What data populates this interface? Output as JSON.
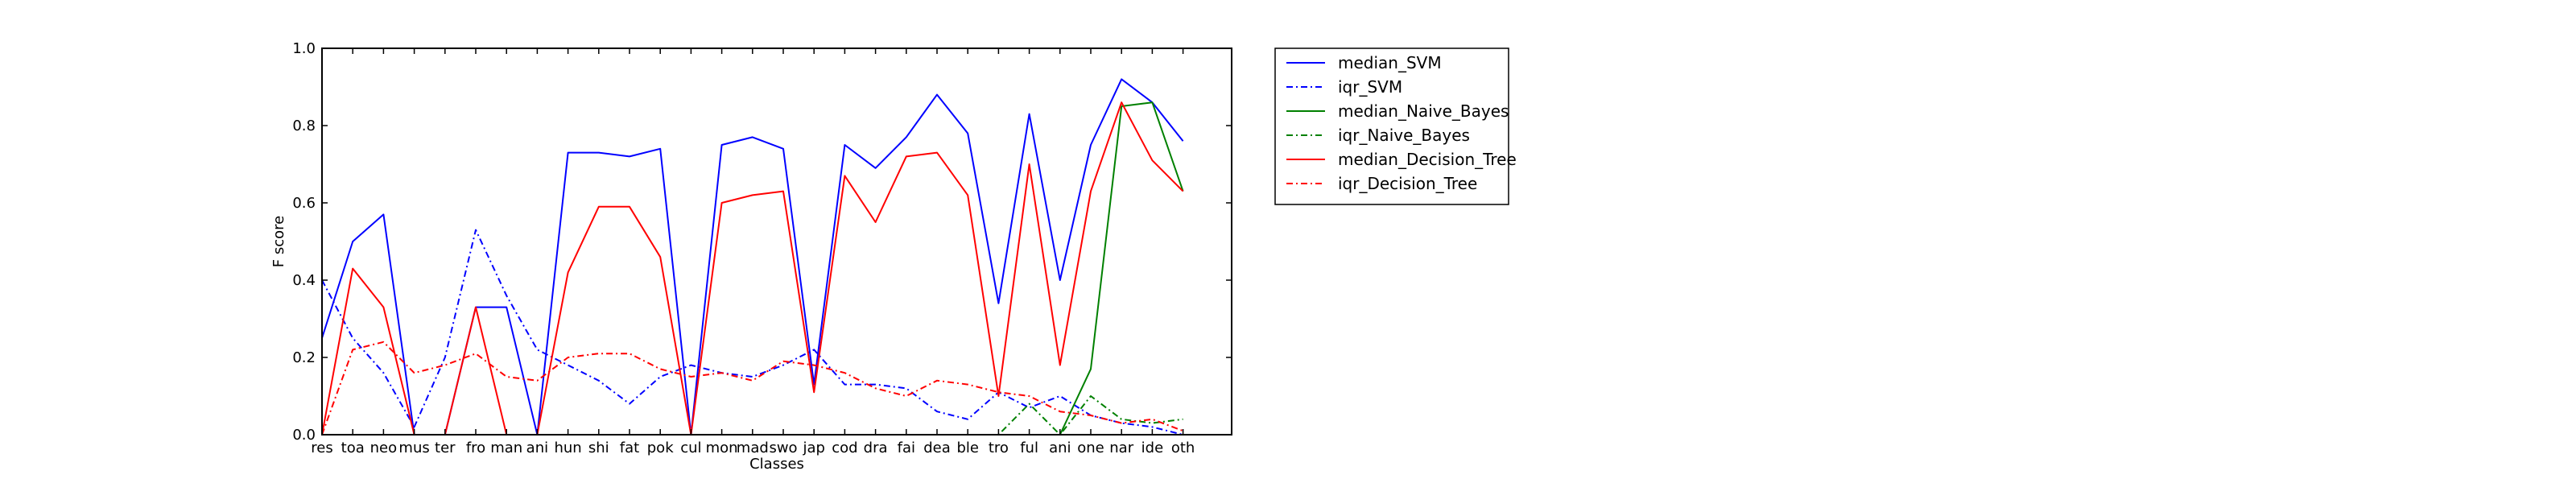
{
  "chart_data": {
    "type": "line",
    "xlabel": "Classes",
    "ylabel": "F score",
    "ylim": [
      0,
      1.0
    ],
    "yticks": [
      "0.0",
      "0.2",
      "0.4",
      "0.6",
      "0.8",
      "1.0"
    ],
    "grid": false,
    "legend_position": "outside-right",
    "categories": [
      "res",
      "toa",
      "neo",
      "mus",
      "ter",
      "fro",
      "man",
      "ani",
      "hun",
      "shi",
      "fat",
      "pok",
      "cul",
      "mon",
      "mad",
      "swo",
      "jap",
      "cod",
      "dra",
      "fai",
      "dea",
      "ble",
      "tro",
      "ful",
      "ani",
      "one",
      "nar",
      "ide",
      "oth"
    ],
    "series": [
      {
        "name": "median_SVM",
        "color": "#0000ff",
        "dash": "solid",
        "values": [
          0.25,
          0.5,
          0.57,
          0.0,
          0.0,
          0.33,
          0.33,
          0.0,
          0.73,
          0.73,
          0.72,
          0.74,
          0.0,
          0.75,
          0.77,
          0.74,
          0.13,
          0.75,
          0.69,
          0.77,
          0.88,
          0.78,
          0.34,
          0.83,
          0.4,
          0.75,
          0.92,
          0.86,
          0.76
        ]
      },
      {
        "name": "iqr_SVM",
        "color": "#0000ff",
        "dash": "dashdot",
        "values": [
          0.4,
          0.25,
          0.16,
          0.02,
          0.2,
          0.53,
          0.36,
          0.22,
          0.18,
          0.14,
          0.08,
          0.15,
          0.18,
          0.16,
          0.15,
          0.18,
          0.22,
          0.13,
          0.13,
          0.12,
          0.06,
          0.04,
          0.11,
          0.07,
          0.1,
          0.05,
          0.03,
          0.02,
          0.0
        ]
      },
      {
        "name": "median_Naive_Bayes",
        "color": "#008000",
        "dash": "solid",
        "values": [
          0,
          0,
          0,
          0,
          0,
          0,
          0,
          0,
          0,
          0,
          0,
          0,
          0,
          0,
          0,
          0,
          0,
          0,
          0,
          0,
          0,
          0,
          0,
          0,
          0,
          0.17,
          0.85,
          0.86,
          0.63
        ]
      },
      {
        "name": "iqr_Naive_Bayes",
        "color": "#008000",
        "dash": "dashdot",
        "values": [
          0,
          0,
          0,
          0,
          0,
          0,
          0,
          0,
          0,
          0,
          0,
          0,
          0,
          0,
          0,
          0,
          0,
          0,
          0,
          0,
          0,
          0,
          0,
          0.08,
          0,
          0.1,
          0.04,
          0.03,
          0.04
        ]
      },
      {
        "name": "median_Decision_Tree",
        "color": "#ff0000",
        "dash": "solid",
        "values": [
          0.0,
          0.43,
          0.33,
          0.0,
          0.0,
          0.33,
          0.0,
          0.0,
          0.42,
          0.59,
          0.59,
          0.46,
          0.0,
          0.6,
          0.62,
          0.63,
          0.11,
          0.67,
          0.55,
          0.72,
          0.73,
          0.62,
          0.1,
          0.7,
          0.18,
          0.63,
          0.86,
          0.71,
          0.63
        ]
      },
      {
        "name": "iqr_Decision_Tree",
        "color": "#ff0000",
        "dash": "dashdot",
        "values": [
          0.0,
          0.22,
          0.24,
          0.16,
          0.18,
          0.21,
          0.15,
          0.14,
          0.2,
          0.21,
          0.21,
          0.17,
          0.15,
          0.16,
          0.14,
          0.19,
          0.18,
          0.16,
          0.12,
          0.1,
          0.14,
          0.13,
          0.11,
          0.1,
          0.06,
          0.05,
          0.03,
          0.04,
          0.01
        ]
      }
    ]
  }
}
